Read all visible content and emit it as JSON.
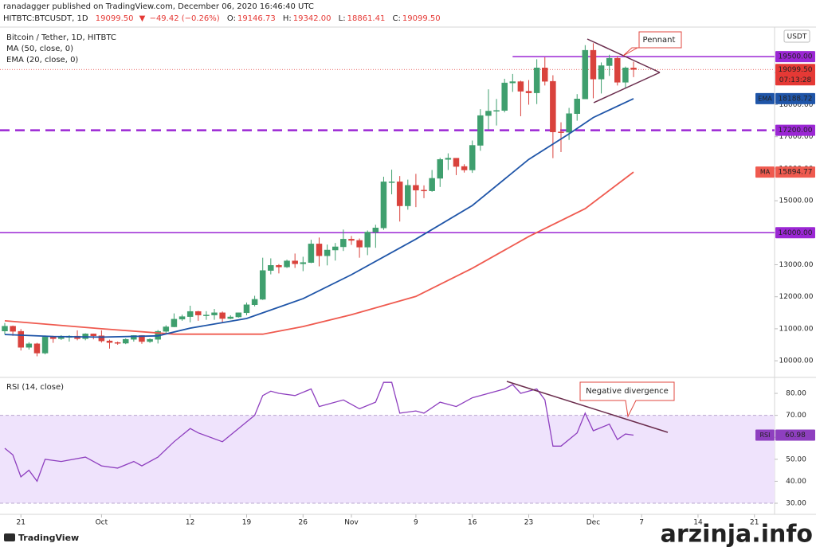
{
  "header": {
    "byline": "ranadagger published on TradingView.com, December 06, 2020 16:46:40 UTC",
    "symbol": "HITBTC:BTCUSDT, 1D",
    "last": "19099.50",
    "change": "−49.42 (−0.26%)",
    "ohlc": [
      {
        "label": "O:",
        "value": "19146.73"
      },
      {
        "label": "H:",
        "value": "19342.00"
      },
      {
        "label": "L:",
        "value": "18861.41"
      },
      {
        "label": "C:",
        "value": "19099.50"
      }
    ]
  },
  "currency": "USDT",
  "footer": {
    "brand": "TradingView",
    "watermark": "arzinja.info"
  },
  "chart_data": [
    {
      "type": "candlestick",
      "title": "Bitcoin / Tether, 1D, HITBTC",
      "up_color": "#3f9f6e",
      "down_color": "#d9423c",
      "categories": [
        "Sep 19",
        "Sep 20",
        "Sep 21",
        "Sep 22",
        "Sep 23",
        "Sep 24",
        "Sep 25",
        "Sep 26",
        "Sep 27",
        "Sep 28",
        "Sep 29",
        "Sep 30",
        "Oct 1",
        "Oct 2",
        "Oct 3",
        "Oct 4",
        "Oct 5",
        "Oct 6",
        "Oct 7",
        "Oct 8",
        "Oct 9",
        "Oct 10",
        "Oct 11",
        "Oct 12",
        "Oct 13",
        "Oct 14",
        "Oct 15",
        "Oct 16",
        "Oct 17",
        "Oct 18",
        "Oct 19",
        "Oct 20",
        "Oct 21",
        "Oct 22",
        "Oct 23",
        "Oct 24",
        "Oct 25",
        "Oct 26",
        "Oct 27",
        "Oct 28",
        "Oct 29",
        "Oct 30",
        "Oct 31",
        "Nov 1",
        "Nov 2",
        "Nov 3",
        "Nov 4",
        "Nov 5",
        "Nov 6",
        "Nov 7",
        "Nov 8",
        "Nov 9",
        "Nov 10",
        "Nov 11",
        "Nov 12",
        "Nov 13",
        "Nov 14",
        "Nov 15",
        "Nov 16",
        "Nov 17",
        "Nov 18",
        "Nov 19",
        "Nov 20",
        "Nov 21",
        "Nov 22",
        "Nov 23",
        "Nov 24",
        "Nov 25",
        "Nov 26",
        "Nov 27",
        "Nov 28",
        "Nov 29",
        "Nov 30",
        "Dec 1",
        "Dec 2",
        "Dec 3",
        "Dec 4",
        "Dec 5",
        "Dec 6"
      ],
      "open": [
        10930,
        11080,
        10920,
        10420,
        10530,
        10240,
        10740,
        10690,
        10730,
        10770,
        10690,
        10840,
        10780,
        10620,
        10570,
        10550,
        10670,
        10790,
        10600,
        10670,
        10920,
        11060,
        11300,
        11380,
        11540,
        11430,
        11430,
        11500,
        11320,
        11370,
        11500,
        11750,
        11920,
        12820,
        12980,
        12930,
        13120,
        13030,
        13070,
        13650,
        13280,
        13460,
        13560,
        13800,
        13760,
        13550,
        14020,
        14150,
        15590,
        15590,
        14840,
        15480,
        15330,
        15310,
        15700,
        16290,
        16330,
        16070,
        15960,
        16730,
        17660,
        17800,
        17820,
        18680,
        18720,
        18420,
        18370,
        19150,
        18730,
        17150,
        17140,
        17720,
        18180,
        19700,
        18800,
        19220,
        19450,
        18700,
        19146.73
      ],
      "high": [
        11180,
        11100,
        10990,
        10580,
        10560,
        10790,
        10780,
        10800,
        10800,
        10950,
        10860,
        10850,
        10950,
        10660,
        10600,
        10700,
        10800,
        10800,
        10700,
        10960,
        11110,
        11480,
        11440,
        11720,
        11560,
        11550,
        11620,
        11540,
        11420,
        11500,
        11820,
        12030,
        13220,
        13200,
        13020,
        13160,
        13350,
        13250,
        13780,
        13850,
        13630,
        13680,
        14100,
        13900,
        13820,
        14070,
        14250,
        15750,
        15970,
        15770,
        15660,
        15840,
        15480,
        15960,
        16340,
        16480,
        16330,
        16140,
        16880,
        17860,
        18480,
        18180,
        18810,
        18960,
        18750,
        18770,
        19420,
        19480,
        18920,
        17450,
        17900,
        18330,
        19860,
        19920,
        19320,
        19560,
        19520,
        19190,
        19342
      ],
      "low": [
        10820,
        10780,
        10320,
        10350,
        10140,
        10200,
        10560,
        10650,
        10600,
        10640,
        10640,
        10670,
        10570,
        10380,
        10500,
        10520,
        10600,
        10530,
        10560,
        10540,
        10830,
        11050,
        11250,
        11200,
        11250,
        11280,
        11280,
        11200,
        11300,
        11350,
        11420,
        11700,
        11900,
        12700,
        12730,
        12900,
        12900,
        12800,
        13050,
        12950,
        12980,
        13130,
        13430,
        13620,
        13220,
        13300,
        13530,
        14090,
        15200,
        14350,
        14720,
        14800,
        15080,
        15280,
        15430,
        15960,
        15800,
        15880,
        15870,
        16560,
        17220,
        17350,
        17760,
        18400,
        17640,
        18000,
        18020,
        18600,
        16330,
        16520,
        16900,
        17500,
        18180,
        18200,
        18350,
        18900,
        18600,
        18520,
        18861.41
      ],
      "close": [
        11080,
        10920,
        10420,
        10530,
        10240,
        10740,
        10690,
        10730,
        10770,
        10690,
        10840,
        10780,
        10620,
        10570,
        10550,
        10670,
        10790,
        10600,
        10670,
        10920,
        11060,
        11300,
        11380,
        11540,
        11430,
        11430,
        11500,
        11320,
        11370,
        11500,
        11750,
        11920,
        12820,
        12980,
        12930,
        13120,
        13030,
        13070,
        13650,
        13280,
        13460,
        13560,
        13800,
        13760,
        13550,
        14020,
        14150,
        15590,
        15590,
        14840,
        15480,
        15330,
        15310,
        15700,
        16290,
        16330,
        16070,
        15960,
        16730,
        17660,
        17800,
        17820,
        18680,
        18720,
        18420,
        18370,
        19150,
        18730,
        17150,
        17140,
        17720,
        18180,
        19700,
        18800,
        19220,
        19450,
        18700,
        19150,
        19099.5
      ],
      "xlim": [
        "Sep 19",
        "Dec 23"
      ],
      "xticks": [
        {
          "value": "Sep 21",
          "label": "21"
        },
        {
          "value": "Oct 1",
          "label": "Oct"
        },
        {
          "value": "Oct 12",
          "label": "12"
        },
        {
          "value": "Oct 19",
          "label": "19"
        },
        {
          "value": "Oct 26",
          "label": "26"
        },
        {
          "value": "Nov 1",
          "label": "Nov"
        },
        {
          "value": "Nov 9",
          "label": "9"
        },
        {
          "value": "Nov 16",
          "label": "16"
        },
        {
          "value": "Nov 23",
          "label": "23"
        },
        {
          "value": "Dec 1",
          "label": "Dec"
        },
        {
          "value": "Dec 7",
          "label": "7"
        },
        {
          "value": "Dec 14",
          "label": "14"
        },
        {
          "value": "Dec 21",
          "label": "21"
        }
      ],
      "ylim": [
        9580,
        20400
      ],
      "yticks": [
        {
          "value": 10000,
          "label": "10000.00"
        },
        {
          "value": 11000,
          "label": "11000.00"
        },
        {
          "value": 12000,
          "label": "12000.00"
        },
        {
          "value": 13000,
          "label": "13000.00"
        },
        {
          "value": 14000,
          "label": "14000.00"
        },
        {
          "value": 15000,
          "label": "15000.00"
        },
        {
          "value": 16000,
          "label": "16000.00"
        },
        {
          "value": 17000,
          "label": "17000.00"
        },
        {
          "value": 18000,
          "label": "18000.00"
        },
        {
          "value": 19000,
          "label": "19000.00"
        }
      ],
      "series": [
        {
          "name": "MA (50, close, 0)",
          "tag": "MA",
          "color": "#ef5a4f",
          "x": [
            "Sep 19",
            "Oct 1",
            "Oct 10",
            "Oct 21",
            "Oct 26",
            "Nov 1",
            "Nov 9",
            "Nov 16",
            "Nov 23",
            "Nov 30",
            "Dec 6"
          ],
          "values": [
            11250,
            11000,
            10830,
            10830,
            11070,
            11440,
            12010,
            12890,
            13880,
            14750,
            15894.77
          ],
          "last_label": "15894.77"
        },
        {
          "name": "EMA (20, close, 0)",
          "tag": "EMA",
          "color": "#1f55a8",
          "x": [
            "Sep 19",
            "Sep 25",
            "Oct 1",
            "Oct 8",
            "Oct 12",
            "Oct 19",
            "Oct 26",
            "Nov 1",
            "Nov 9",
            "Nov 16",
            "Nov 23",
            "Nov 28",
            "Dec 1",
            "Dec 6"
          ],
          "values": [
            10820,
            10760,
            10740,
            10780,
            11020,
            11320,
            11940,
            12690,
            13800,
            14850,
            16290,
            17090,
            17600,
            18188.72
          ],
          "last_label": "18188.72"
        }
      ],
      "level_color": "#9b27d4",
      "levels": [
        {
          "value": 19500,
          "label": "19500.00",
          "style": "solid",
          "start": "Nov 21"
        },
        {
          "value": 17200,
          "label": "17200.00",
          "style": "dashed"
        },
        {
          "value": 14000,
          "label": "14000.00",
          "style": "solid"
        }
      ],
      "last_price": {
        "value": 19099.5,
        "label": "19099.50",
        "countdown": "07:13:28",
        "color": "#e53935"
      },
      "annotations": [
        "Pennant"
      ]
    },
    {
      "type": "line",
      "title": "RSI (14, close)",
      "series": [
        {
          "name": "RSI",
          "color": "#8e3fbf",
          "x": [
            "Sep 19",
            "Sep 20",
            "Sep 21",
            "Sep 22",
            "Sep 23",
            "Sep 24",
            "Sep 26",
            "Sep 29",
            "Sep 30",
            "Oct 1",
            "Oct 3",
            "Oct 5",
            "Oct 6",
            "Oct 8",
            "Oct 10",
            "Oct 12",
            "Oct 13",
            "Oct 16",
            "Oct 19",
            "Oct 20",
            "Oct 21",
            "Oct 22",
            "Oct 23",
            "Oct 25",
            "Oct 27",
            "Oct 28",
            "Oct 31",
            "Nov 2",
            "Nov 4",
            "Nov 5",
            "Nov 6",
            "Nov 7",
            "Nov 9",
            "Nov 10",
            "Nov 12",
            "Nov 14",
            "Nov 16",
            "Nov 20",
            "Nov 21",
            "Nov 22",
            "Nov 24",
            "Nov 25",
            "Nov 26",
            "Nov 27",
            "Nov 29",
            "Nov 30",
            "Dec 1",
            "Dec 3",
            "Dec 4",
            "Dec 5",
            "Dec 6"
          ],
          "values": [
            55,
            52,
            42,
            45,
            40,
            50,
            49,
            51,
            49,
            47,
            46,
            49,
            47,
            51,
            58,
            64,
            62,
            58,
            67,
            70,
            79,
            81,
            80,
            79,
            82,
            74,
            77,
            73,
            76,
            85,
            85,
            71,
            72,
            71,
            76,
            74,
            78,
            82,
            84,
            80,
            82,
            77,
            56,
            56,
            62,
            71,
            63,
            66,
            59,
            61.5,
            60.98
          ],
          "last_label": "60.98"
        }
      ],
      "ylim": [
        25.3,
        86.9
      ],
      "yticks": [
        {
          "value": 30,
          "label": "30.00"
        },
        {
          "value": 40,
          "label": "40.00"
        },
        {
          "value": 50,
          "label": "50.00"
        },
        {
          "value": 60,
          "label": "60.00"
        },
        {
          "value": 70,
          "label": "70.00"
        },
        {
          "value": 80,
          "label": "80.00"
        }
      ],
      "band": [
        30,
        70
      ],
      "band_color": "#efe3fc",
      "annotations": [
        "Negative divergence"
      ]
    }
  ]
}
